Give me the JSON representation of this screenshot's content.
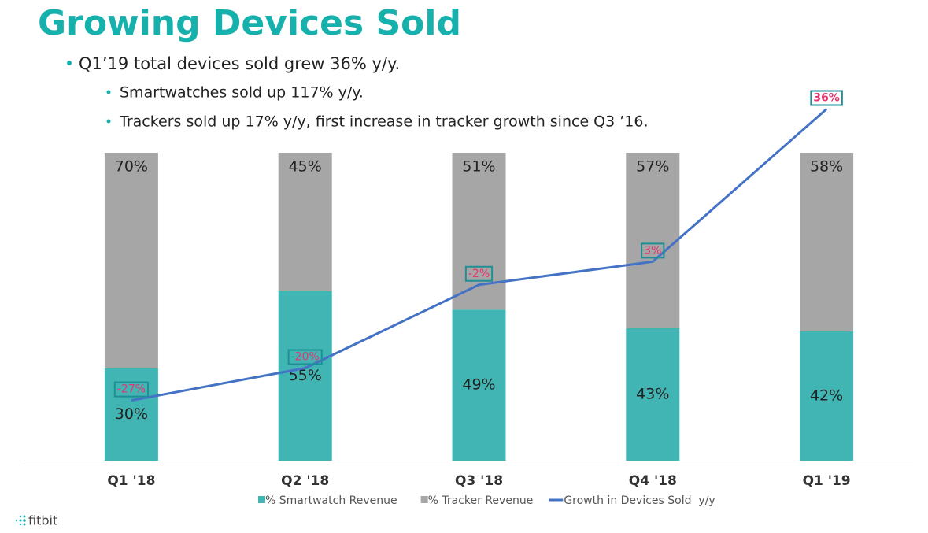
{
  "title": "Growing Devices Sold",
  "bullets": [
    "Q1’19 total devices sold grew 36% y/y.",
    "Smartwatches sold up 117% y/y.",
    "Trackers sold up 17% y/y, first increase in tracker growth since Q3 ’16."
  ],
  "logo": "fitbit",
  "chart_data": {
    "type": "bar",
    "stacked": true,
    "categories": [
      "Q1 '18",
      "Q2 '18",
      "Q3 '18",
      "Q4 '18",
      "Q1 '19"
    ],
    "ylim": [
      0,
      100
    ],
    "y2lim": [
      -40,
      40
    ],
    "series": [
      {
        "name": "% Smartwatch Revenue",
        "color": "#40b5b3",
        "values": [
          30,
          55,
          49,
          43,
          42
        ],
        "value_labels": [
          "30%",
          "55%",
          "49%",
          "43%",
          "42%"
        ]
      },
      {
        "name": "% Tracker Revenue",
        "color": "#a6a6a6",
        "values": [
          70,
          45,
          51,
          57,
          58
        ],
        "value_labels": [
          "70%",
          "45%",
          "51%",
          "57%",
          "58%"
        ]
      },
      {
        "name": "Growth in Devices Sold  y/y",
        "type": "line",
        "axis": "y2",
        "color": "#4472c4",
        "values": [
          -27,
          -20,
          -2,
          3,
          36
        ],
        "value_labels": [
          "-27%",
          "-20%",
          "-2%",
          "3%",
          "36%"
        ]
      }
    ]
  }
}
